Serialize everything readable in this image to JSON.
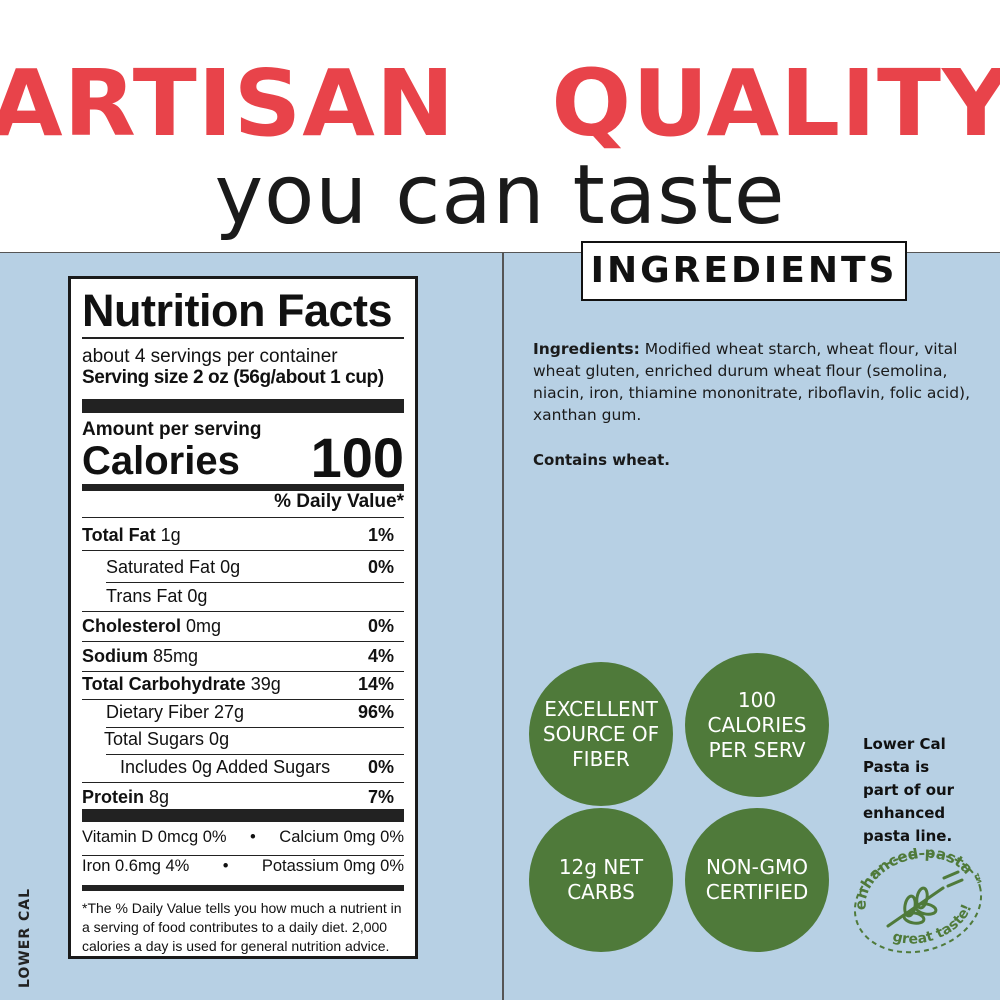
{
  "header": {
    "title": "ARTISAN  QUALITY",
    "subtitle": "you can taste"
  },
  "ingredients": {
    "heading": "INGREDIENTS",
    "label": "Ingredients:",
    "text": " Modified wheat starch, wheat flour, vital wheat gluten, enriched durum wheat flour (semolina, niacin, iron, thiamine mononitrate, riboflavin, folic acid), xanthan gum.",
    "contains": "Contains wheat."
  },
  "badges": [
    "EXCELLENT SOURCE OF FIBER",
    "100 CALORIES PER SERV",
    "12g NET CARBS",
    "NON-GMO CERTIFIED"
  ],
  "side_note": "Lower Cal Pasta is part of our enhanced pasta line.",
  "logo": {
    "top": "enhanced pasta™",
    "bottom": "great taste!",
    "icon": "wheat-icon"
  },
  "side_label": "LOWER CAL",
  "colors": {
    "accent": "#e8434a",
    "badge": "#4f7a3a",
    "background": "#b7d0e4"
  },
  "nutrition": {
    "title": "Nutrition Facts",
    "servings": "about 4 servings per container",
    "serving_size": "Serving size 2 oz (56g/about 1 cup)",
    "amount": "Amount per serving",
    "calories_label": "Calories",
    "calories": "100",
    "dv_header": "% Daily Value*",
    "rows": [
      {
        "name": "Total Fat",
        "amt": " 1g",
        "dv": "1%",
        "bold": true,
        "indent": 0
      },
      {
        "name": "Saturated Fat 0g",
        "amt": "",
        "dv": "0%",
        "bold": false,
        "indent": 24
      },
      {
        "name": "Trans Fat 0g",
        "amt": "",
        "dv": "",
        "bold": false,
        "indent": 24
      },
      {
        "name": "Cholesterol",
        "amt": " 0mg",
        "dv": "0%",
        "bold": true,
        "indent": 0
      },
      {
        "name": "Sodium",
        "amt": " 85mg",
        "dv": "4%",
        "bold": true,
        "indent": 0
      },
      {
        "name": "Total Carbohydrate",
        "amt": " 39g",
        "dv": "14%",
        "bold": true,
        "indent": 0
      },
      {
        "name": "Dietary Fiber 27g",
        "amt": "",
        "dv": "96%",
        "bold": false,
        "indent": 24
      },
      {
        "name": "Total Sugars 0g",
        "amt": "",
        "dv": "",
        "bold": false,
        "indent": 22
      },
      {
        "name": "Includes 0g Added Sugars",
        "amt": "",
        "dv": "0%",
        "bold": false,
        "indent": 38
      },
      {
        "name": "Protein",
        "amt": " 8g",
        "dv": "7%",
        "bold": true,
        "indent": 0
      }
    ],
    "vitamins": [
      [
        "Vitamin D 0mcg 0%",
        "Calcium 0mg 0%"
      ],
      [
        "Iron 0.6mg 4%",
        "Potassium 0mg 0%"
      ]
    ],
    "footnote": "*The % Daily Value tells you how much a nutrient in a serving of food contributes to a daily diet. 2,000 calories a day is used for general nutrition advice."
  }
}
